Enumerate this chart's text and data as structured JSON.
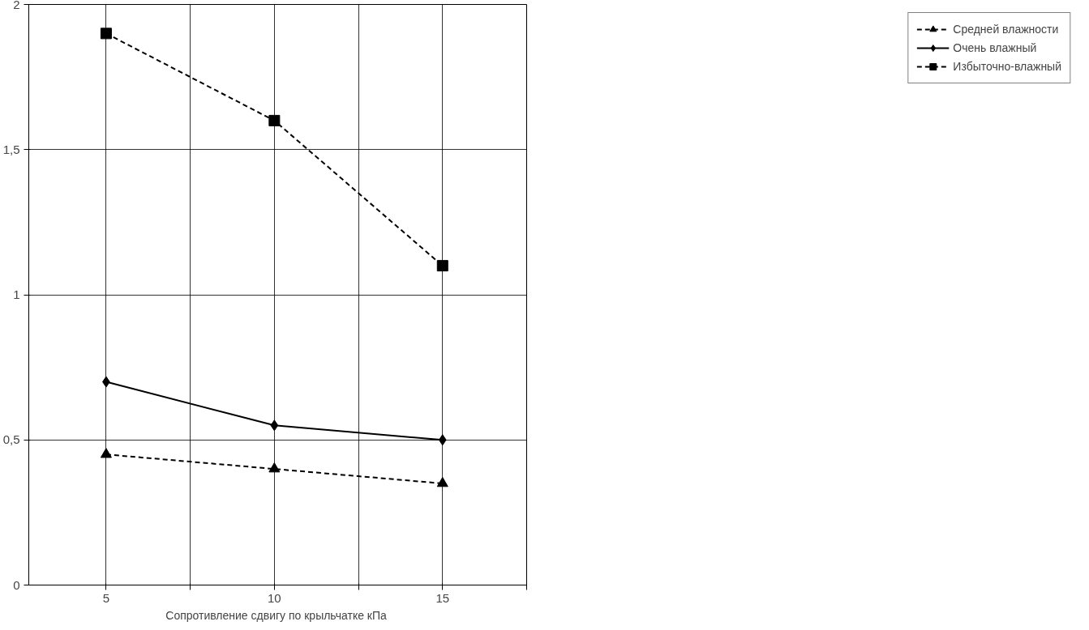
{
  "chart_data": {
    "type": "line",
    "xlabel": "Сопротивление сдвигу по крыльчатке  кПа",
    "x": [
      5,
      10,
      15
    ],
    "series": [
      {
        "name": "Средней влажности",
        "color": "#000000",
        "values": [
          0.45,
          0.4,
          0.35
        ],
        "marker": "triangle",
        "line_style": "dashed"
      },
      {
        "name": "Очень влажный",
        "color": "#000000",
        "values": [
          0.7,
          0.55,
          0.5
        ],
        "marker": "diamond",
        "line_style": "solid"
      },
      {
        "name": "Избыточно-влажный",
        "color": "#000000",
        "values": [
          1.9,
          1.6,
          1.1
        ],
        "marker": "square",
        "line_style": "dashed"
      }
    ],
    "xlim": [
      2.7,
      17.5
    ],
    "xticks": [
      5,
      {
        "value": 7.5,
        "label": null
      },
      10,
      {
        "value": 12.5,
        "label": null
      },
      15,
      {
        "value": 17.5,
        "label": null
      }
    ],
    "ylim": [
      0,
      2
    ],
    "yticks": [
      0,
      {
        "value": 0.5,
        "label": "0,5"
      },
      1,
      {
        "value": 1.5,
        "label": "1,5"
      },
      2
    ],
    "grid": true,
    "legend": "right"
  }
}
